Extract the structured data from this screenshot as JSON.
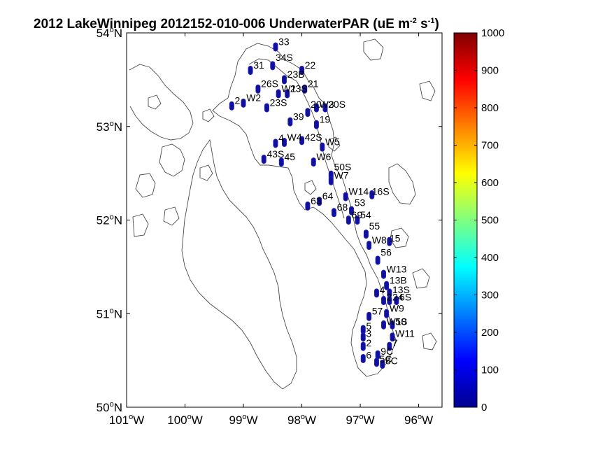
{
  "title": "2012 LakeWinnipeg 2012152-010-006 UnderwaterPAR (uE m",
  "title_sup": "-2",
  "title_mid": " s",
  "title_sup2": "-1",
  "title_end": ")",
  "axes": {
    "x_ticks": [
      {
        "value": -101,
        "label": "101",
        "hemi": "W"
      },
      {
        "value": -100,
        "label": "100",
        "hemi": "W"
      },
      {
        "value": -99,
        "label": "99",
        "hemi": "W"
      },
      {
        "value": -98,
        "label": "98",
        "hemi": "W"
      },
      {
        "value": -97,
        "label": "97",
        "hemi": "W"
      },
      {
        "value": -96,
        "label": "96",
        "hemi": "W"
      }
    ],
    "y_ticks": [
      {
        "value": 50,
        "label": "50",
        "hemi": "N"
      },
      {
        "value": 51,
        "label": "51",
        "hemi": "N"
      },
      {
        "value": 52,
        "label": "52",
        "hemi": "N"
      },
      {
        "value": 53,
        "label": "53",
        "hemi": "N"
      },
      {
        "value": 54,
        "label": "54",
        "hemi": "N"
      }
    ],
    "degree_symbol": "o",
    "xlim": [
      -101,
      -95.6
    ],
    "ylim": [
      50,
      54
    ]
  },
  "colorbar": {
    "min": 0,
    "max": 1000,
    "ticks": [
      "0",
      "100",
      "200",
      "300",
      "400",
      "500",
      "600",
      "700",
      "800",
      "900",
      "1000"
    ],
    "colormap": "jet",
    "colors": [
      "#00008f",
      "#0000ff",
      "#0080ff",
      "#00ffff",
      "#80ff80",
      "#ffff00",
      "#ff8000",
      "#ff0000",
      "#800000"
    ]
  },
  "chart_data": {
    "type": "scatter",
    "xlabel": "",
    "ylabel": "",
    "marker_color": "#10109a",
    "stations": [
      {
        "name": "33",
        "lon": -98.45,
        "lat": 53.85,
        "lx": 0.05,
        "ly": 0.02
      },
      {
        "name": "31",
        "lon": -98.88,
        "lat": 53.6,
        "lx": 0.05,
        "ly": 0.02
      },
      {
        "name": "34S",
        "lon": -98.5,
        "lat": 53.65,
        "lx": 0.05,
        "ly": 0.05
      },
      {
        "name": "22",
        "lon": -98.0,
        "lat": 53.6,
        "lx": 0.05,
        "ly": 0.02
      },
      {
        "name": "23B",
        "lon": -98.3,
        "lat": 53.5,
        "lx": 0.05,
        "ly": 0.02
      },
      {
        "name": "26S",
        "lon": -98.75,
        "lat": 53.4,
        "lx": 0.05,
        "ly": 0.02
      },
      {
        "name": "W1",
        "lon": -98.4,
        "lat": 53.35,
        "lx": 0.05,
        "ly": 0.02
      },
      {
        "name": "21",
        "lon": -97.95,
        "lat": 53.4,
        "lx": 0.05,
        "ly": 0.02
      },
      {
        "name": "23S",
        "lon": -98.25,
        "lat": 53.35,
        "lx": 0.05,
        "ly": 0.02
      },
      {
        "name": "2",
        "lon": -99.2,
        "lat": 53.22,
        "lx": 0.05,
        "ly": 0.02
      },
      {
        "name": "W2",
        "lon": -99.0,
        "lat": 53.25,
        "lx": 0.05,
        "ly": 0.02
      },
      {
        "name": "23S",
        "lon": -98.6,
        "lat": 53.2,
        "lx": 0.05,
        "ly": 0.02
      },
      {
        "name": "20",
        "lon": -97.9,
        "lat": 53.15,
        "lx": 0.05,
        "ly": 0.05
      },
      {
        "name": "W3",
        "lon": -97.75,
        "lat": 53.2,
        "lx": 0.05,
        "ly": 0.0
      },
      {
        "name": "20S",
        "lon": -97.6,
        "lat": 53.2,
        "lx": 0.05,
        "ly": 0.0
      },
      {
        "name": "39",
        "lon": -98.2,
        "lat": 53.05,
        "lx": 0.05,
        "ly": 0.02
      },
      {
        "name": "19",
        "lon": -97.75,
        "lat": 53.02,
        "lx": 0.05,
        "ly": 0.02
      },
      {
        "name": "4",
        "lon": -98.45,
        "lat": 52.82,
        "lx": 0.05,
        "ly": 0.02
      },
      {
        "name": "W4",
        "lon": -98.3,
        "lat": 52.83,
        "lx": 0.05,
        "ly": 0.02
      },
      {
        "name": "42S",
        "lon": -98.0,
        "lat": 52.85,
        "lx": 0.05,
        "ly": 0.0
      },
      {
        "name": "W5",
        "lon": -97.65,
        "lat": 52.78,
        "lx": 0.05,
        "ly": 0.02
      },
      {
        "name": "43S",
        "lon": -98.65,
        "lat": 52.65,
        "lx": 0.05,
        "ly": 0.02
      },
      {
        "name": "45",
        "lon": -98.35,
        "lat": 52.62,
        "lx": 0.05,
        "ly": 0.02
      },
      {
        "name": "W6",
        "lon": -97.8,
        "lat": 52.62,
        "lx": 0.05,
        "ly": 0.02
      },
      {
        "name": "50S",
        "lon": -97.5,
        "lat": 52.48,
        "lx": 0.05,
        "ly": 0.05
      },
      {
        "name": "W7",
        "lon": -97.5,
        "lat": 52.42,
        "lx": 0.05,
        "ly": 0.02
      },
      {
        "name": "W14",
        "lon": -97.25,
        "lat": 52.25,
        "lx": 0.05,
        "ly": 0.02
      },
      {
        "name": "16S",
        "lon": -96.8,
        "lat": 52.27,
        "lx": 0.0,
        "ly": 0.0
      },
      {
        "name": "64",
        "lon": -97.7,
        "lat": 52.2,
        "lx": 0.05,
        "ly": 0.02
      },
      {
        "name": "63",
        "lon": -97.9,
        "lat": 52.15,
        "lx": 0.05,
        "ly": 0.02
      },
      {
        "name": "68",
        "lon": -97.45,
        "lat": 52.08,
        "lx": 0.05,
        "ly": 0.02
      },
      {
        "name": "53",
        "lon": -97.15,
        "lat": 52.1,
        "lx": 0.05,
        "ly": 0.05
      },
      {
        "name": "69",
        "lon": -97.2,
        "lat": 52.0,
        "lx": 0.05,
        "ly": 0.02
      },
      {
        "name": "54",
        "lon": -97.05,
        "lat": 52.0,
        "lx": 0.05,
        "ly": 0.02
      },
      {
        "name": "55",
        "lon": -96.9,
        "lat": 51.85,
        "lx": 0.05,
        "ly": 0.05
      },
      {
        "name": "W8",
        "lon": -96.85,
        "lat": 51.73,
        "lx": 0.05,
        "ly": 0.02
      },
      {
        "name": "15",
        "lon": -96.5,
        "lat": 51.77,
        "lx": 0.0,
        "ly": 0.0
      },
      {
        "name": "56",
        "lon": -96.7,
        "lat": 51.57,
        "lx": 0.05,
        "ly": 0.05
      },
      {
        "name": "W13",
        "lon": -96.6,
        "lat": 51.42,
        "lx": 0.05,
        "ly": 0.02
      },
      {
        "name": "13B",
        "lon": -96.55,
        "lat": 51.3,
        "lx": 0.05,
        "ly": 0.02
      },
      {
        "name": "4",
        "lon": -96.72,
        "lat": 51.22,
        "lx": 0.05,
        "ly": 0.0
      },
      {
        "name": "13S",
        "lon": -96.5,
        "lat": 51.22,
        "lx": 0.05,
        "ly": 0.0
      },
      {
        "name": "2",
        "lon": -96.6,
        "lat": 51.14,
        "lx": 0.05,
        "ly": 0.0
      },
      {
        "name": "24",
        "lon": -96.5,
        "lat": 51.14,
        "lx": 0.05,
        "ly": 0.0
      },
      {
        "name": "6S",
        "lon": -96.38,
        "lat": 51.14,
        "lx": 0.05,
        "ly": 0.0
      },
      {
        "name": "W9",
        "lon": -96.55,
        "lat": 51.0,
        "lx": 0.05,
        "ly": 0.02
      },
      {
        "name": "57",
        "lon": -96.85,
        "lat": 50.97,
        "lx": 0.05,
        "ly": 0.02
      },
      {
        "name": "W10",
        "lon": -96.6,
        "lat": 50.88,
        "lx": 0.05,
        "ly": 0.0
      },
      {
        "name": "5S",
        "lon": -96.45,
        "lat": 50.88,
        "lx": 0.05,
        "ly": 0.0
      },
      {
        "name": "5",
        "lon": -96.95,
        "lat": 50.83,
        "lx": 0.05,
        "ly": 0.0
      },
      {
        "name": "W11",
        "lon": -96.45,
        "lat": 50.75,
        "lx": 0.05,
        "ly": 0.0
      },
      {
        "name": "3",
        "lon": -96.95,
        "lat": 50.75,
        "lx": 0.05,
        "ly": 0.0
      },
      {
        "name": "7",
        "lon": -96.5,
        "lat": 50.65,
        "lx": 0.05,
        "ly": 0.0
      },
      {
        "name": "2",
        "lon": -96.95,
        "lat": 50.65,
        "lx": 0.05,
        "ly": 0.0
      },
      {
        "name": "9C",
        "lon": -96.7,
        "lat": 50.56,
        "lx": 0.05,
        "ly": 0.0
      },
      {
        "name": "6",
        "lon": -96.95,
        "lat": 50.52,
        "lx": 0.05,
        "ly": 0.0
      },
      {
        "name": "5C",
        "lon": -96.72,
        "lat": 50.48,
        "lx": 0.05,
        "ly": 0.0
      },
      {
        "name": "8C",
        "lon": -96.62,
        "lat": 50.46,
        "lx": 0.05,
        "ly": 0.0
      }
    ]
  }
}
